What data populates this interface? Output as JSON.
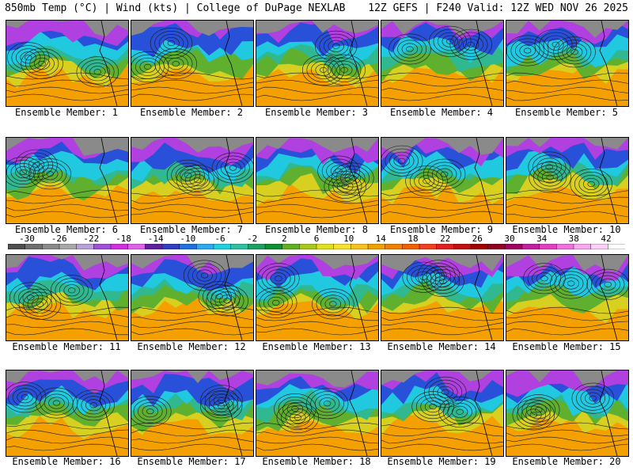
{
  "header": {
    "left": "850mb Temp (°C) | Wind (kts) | College of DuPage NEXLAB",
    "right": "12Z GEFS | F240 Valid: 12Z WED NOV 26 2025"
  },
  "member_label_prefix": "Ensemble Member: ",
  "members": [
    {
      "label": "Ensemble Member: 1"
    },
    {
      "label": "Ensemble Member: 2"
    },
    {
      "label": "Ensemble Member: 3"
    },
    {
      "label": "Ensemble Member: 4"
    },
    {
      "label": "Ensemble Member: 5"
    },
    {
      "label": "Ensemble Member: 6"
    },
    {
      "label": "Ensemble Member: 7"
    },
    {
      "label": "Ensemble Member: 8"
    },
    {
      "label": "Ensemble Member: 9"
    },
    {
      "label": "Ensemble Member: 10"
    },
    {
      "label": "Ensemble Member: 11"
    },
    {
      "label": "Ensemble Member: 12"
    },
    {
      "label": "Ensemble Member: 13"
    },
    {
      "label": "Ensemble Member: 14"
    },
    {
      "label": "Ensemble Member: 15"
    },
    {
      "label": "Ensemble Member: 16"
    },
    {
      "label": "Ensemble Member: 17"
    },
    {
      "label": "Ensemble Member: 18"
    },
    {
      "label": "Ensemble Member: 19"
    },
    {
      "label": "Ensemble Member: 20"
    }
  ],
  "colorbar": {
    "labels": [
      "-30",
      "-26",
      "-22",
      "-18",
      "-14",
      "-10",
      "-6",
      "-2",
      "2",
      "6",
      "10",
      "14",
      "18",
      "22",
      "26",
      "30",
      "34",
      "38",
      "42"
    ],
    "colors": [
      "#4e4e4e",
      "#6e6e6e",
      "#8a8a8a",
      "#a8a8a8",
      "#b8a0d8",
      "#a050d8",
      "#d030e0",
      "#e060e8",
      "#6020a0",
      "#3040c0",
      "#2070e0",
      "#30a8f0",
      "#20d0e0",
      "#30c0a0",
      "#20a060",
      "#109030",
      "#60b020",
      "#a8c820",
      "#e0e020",
      "#f8e030",
      "#f8c020",
      "#f0a000",
      "#f08000",
      "#f06000",
      "#f04020",
      "#e02020",
      "#c01010",
      "#a00000",
      "#900020",
      "#a00060",
      "#c020a0",
      "#e040c0",
      "#f070e0",
      "#f8a8f0",
      "#fcd0f8",
      "#ffffff"
    ]
  },
  "palette": {
    "grey": "#8a8a8a",
    "purple": "#b040e0",
    "blue": "#2850d8",
    "cyan": "#20c8e0",
    "teal": "#30b890",
    "green": "#60b030",
    "yellow": "#d8d020",
    "orange": "#f4a000"
  }
}
